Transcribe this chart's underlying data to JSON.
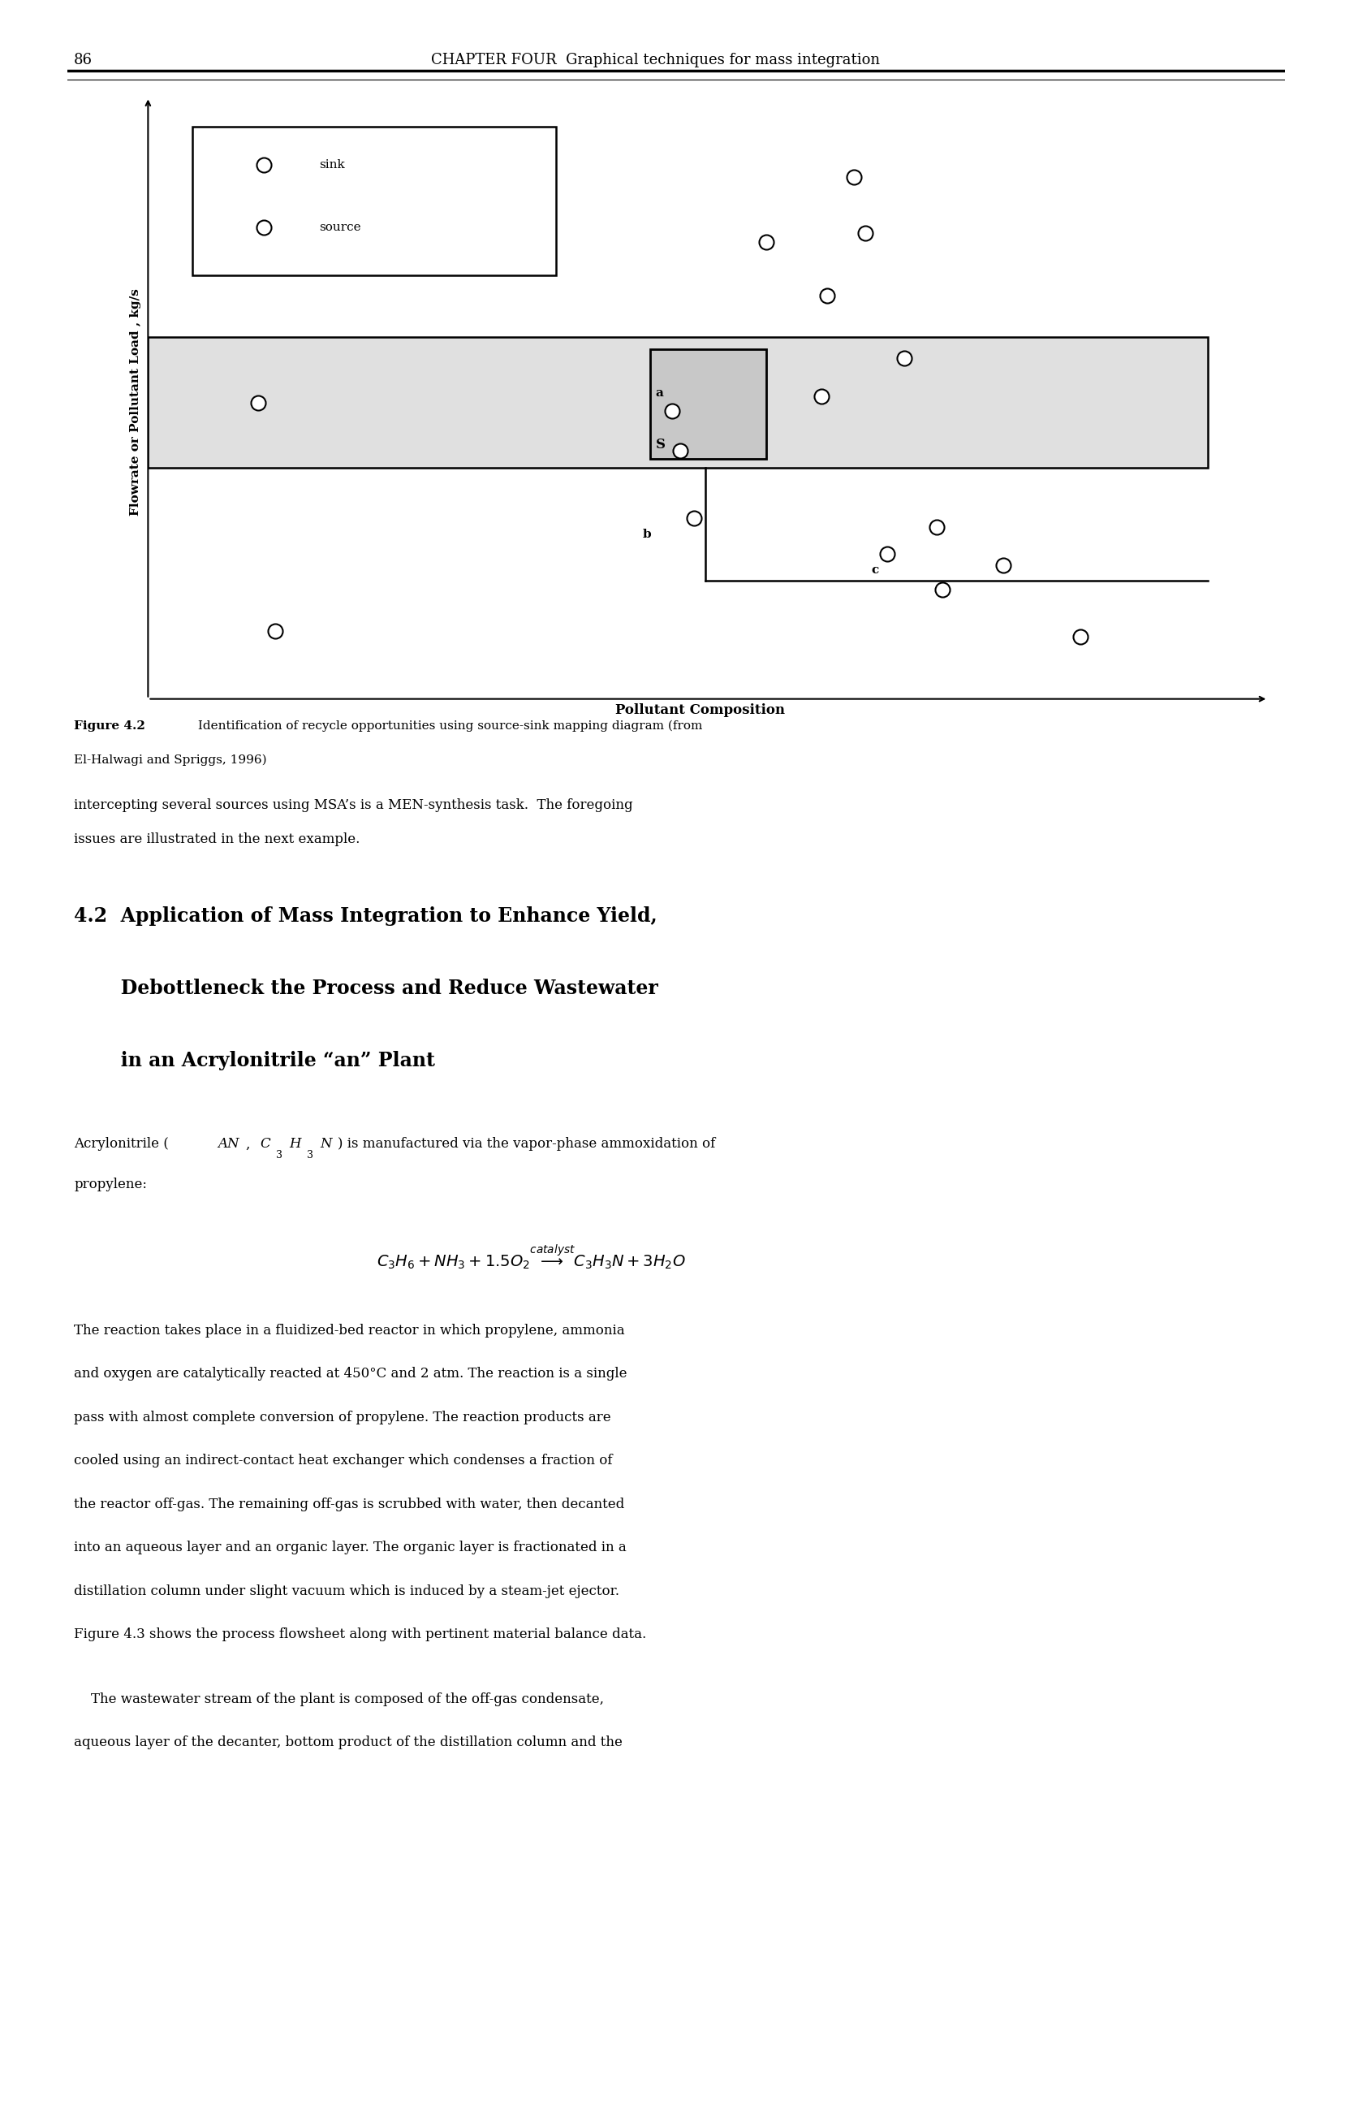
{
  "page_number": "86",
  "header_text": "CHAPTER FOUR  Graphical techniques for mass integration",
  "figure_caption_bold": "Figure 4.2",
  "figure_caption_rest": " Identification of recycle opportunities using source-sink mapping diagram (from",
  "figure_caption_line2": "El-Halwagi and Spriggs, 1996)",
  "text_para1_line1": "intercepting several sources using MSA’s is a MEN-synthesis task.  The foregoing",
  "text_para1_line2": "issues are illustrated in the next example.",
  "heading_line1": "4.2  Application of Mass Integration to Enhance Yield,",
  "heading_line2": "       Debottleneck the Process and Reduce Wastewater",
  "heading_line3": "       in an Acrylonitrile “an” Plant",
  "ylabel": "Flowrate or Pollutant Load , kg/s",
  "xlabel": "Pollutant Composition",
  "legend_sink": "sink",
  "legend_source": "source",
  "para3_lines": [
    "The reaction takes place in a fluidized-bed reactor in which propylene, ammonia",
    "and oxygen are catalytically reacted at 450°C and 2 atm. The reaction is a single",
    "pass with almost complete conversion of propylene. The reaction products are",
    "cooled using an indirect-contact heat exchanger which condenses a fraction of",
    "the reactor off-gas. The remaining off-gas is scrubbed with water, then decanted",
    "into an aqueous layer and an organic layer. The organic layer is fractionated in a",
    "distillation column under slight vacuum which is induced by a steam-jet ejector.",
    "Figure 4.3 shows the process flowsheet along with pertinent material balance data."
  ],
  "para4_line1": "    The wastewater stream of the plant is composed of the off-gas condensate,",
  "para4_line2": "aqueous layer of the decanter, bottom product of the distillation column and the",
  "bg_color": "#ffffff",
  "text_color": "#000000"
}
